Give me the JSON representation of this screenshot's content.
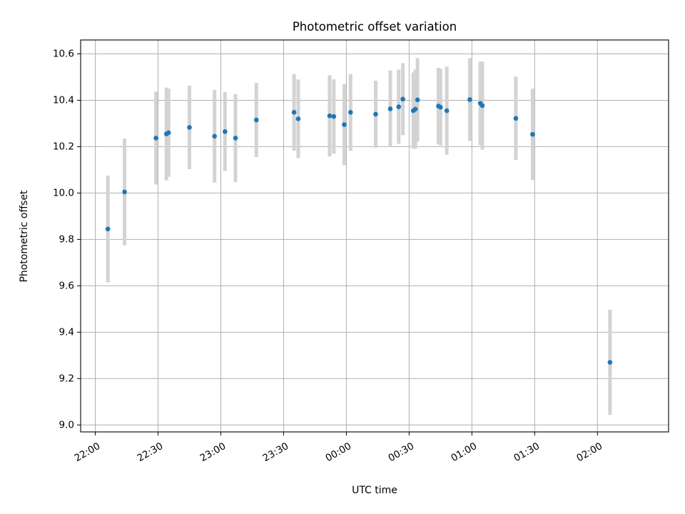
{
  "chart_data": {
    "type": "scatter",
    "title": "Photometric offset variation",
    "xlabel": "UTC time",
    "ylabel": "Photometric offset",
    "x_axis_type": "time",
    "xlim": [
      "21:53",
      "02:34"
    ],
    "ylim": [
      8.97,
      10.66
    ],
    "x_ticks": [
      "22:00",
      "22:30",
      "23:00",
      "23:30",
      "00:00",
      "00:30",
      "01:00",
      "01:30",
      "02:00"
    ],
    "y_ticks": [
      9.0,
      9.2,
      9.4,
      9.6,
      9.8,
      10.0,
      10.2,
      10.4,
      10.6
    ],
    "grid": true,
    "legend": "none",
    "colors": {
      "points": "#1f77b4",
      "error_bars": "#d3d3d3",
      "grid": "#b0b0b0"
    },
    "points": [
      {
        "x": "22:06",
        "y": 9.845,
        "error": 0.23
      },
      {
        "x": "22:14",
        "y": 10.005,
        "error": 0.23
      },
      {
        "x": "22:29",
        "y": 10.237,
        "error": 0.2
      },
      {
        "x": "22:34",
        "y": 10.255,
        "error": 0.2
      },
      {
        "x": "22:35",
        "y": 10.26,
        "error": 0.19
      },
      {
        "x": "22:45",
        "y": 10.283,
        "error": 0.18
      },
      {
        "x": "22:57",
        "y": 10.245,
        "error": 0.2
      },
      {
        "x": "23:02",
        "y": 10.265,
        "error": 0.17
      },
      {
        "x": "23:07",
        "y": 10.237,
        "error": 0.19
      },
      {
        "x": "23:17",
        "y": 10.315,
        "error": 0.16
      },
      {
        "x": "23:35",
        "y": 10.348,
        "error": 0.165
      },
      {
        "x": "23:37",
        "y": 10.32,
        "error": 0.17
      },
      {
        "x": "23:52",
        "y": 10.333,
        "error": 0.175
      },
      {
        "x": "23:54",
        "y": 10.33,
        "error": 0.16
      },
      {
        "x": "23:59",
        "y": 10.295,
        "error": 0.175
      },
      {
        "x": "00:02",
        "y": 10.348,
        "error": 0.165
      },
      {
        "x": "00:14",
        "y": 10.34,
        "error": 0.145
      },
      {
        "x": "00:21",
        "y": 10.363,
        "error": 0.165
      },
      {
        "x": "00:25",
        "y": 10.372,
        "error": 0.16
      },
      {
        "x": "00:27",
        "y": 10.405,
        "error": 0.155
      },
      {
        "x": "00:32",
        "y": 10.355,
        "error": 0.165
      },
      {
        "x": "00:33",
        "y": 10.362,
        "error": 0.17
      },
      {
        "x": "00:34",
        "y": 10.402,
        "error": 0.18
      },
      {
        "x": "00:44",
        "y": 10.375,
        "error": 0.165
      },
      {
        "x": "00:45",
        "y": 10.37,
        "error": 0.165
      },
      {
        "x": "00:48",
        "y": 10.355,
        "error": 0.19
      },
      {
        "x": "00:59",
        "y": 10.403,
        "error": 0.178
      },
      {
        "x": "01:04",
        "y": 10.387,
        "error": 0.18
      },
      {
        "x": "01:05",
        "y": 10.377,
        "error": 0.19
      },
      {
        "x": "01:21",
        "y": 10.322,
        "error": 0.18
      },
      {
        "x": "01:29",
        "y": 10.253,
        "error": 0.197
      },
      {
        "x": "02:06",
        "y": 9.27,
        "error": 0.227
      }
    ]
  }
}
